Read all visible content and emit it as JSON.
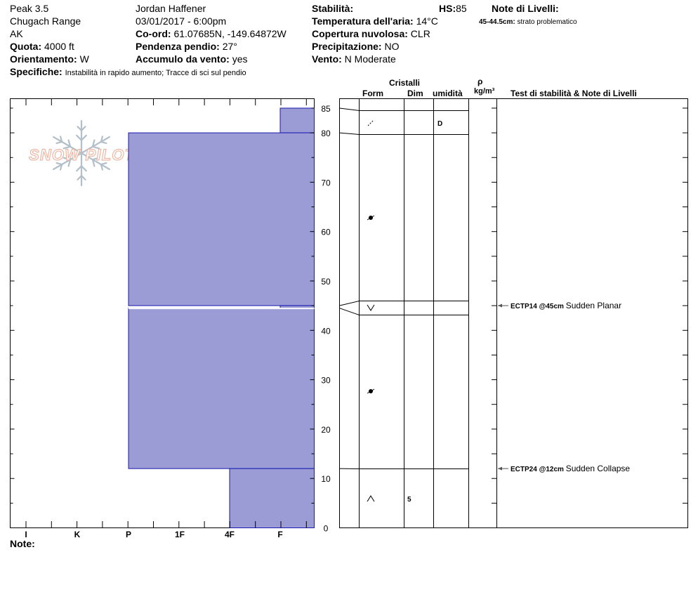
{
  "header": {
    "location": "Peak 3.5",
    "range": "Chugach Range",
    "state": "AK",
    "elevation_label": "Quota:",
    "elevation_value": "4000 ft",
    "aspect_label": "Orientamento:",
    "aspect_value": "W",
    "observer": "Jordan Haffener",
    "datetime": "03/01/2017 - 6:00pm",
    "coord_label": "Co-ord:",
    "coord_value": "61.07685N, -149.64872W",
    "slope_label": "Pendenza pendio:",
    "slope_value": "27°",
    "wind_loading_label": "Accumulo da vento:",
    "wind_loading_value": "yes",
    "specifics_label": "Specifiche:",
    "specifics_value": "Instabilità in rapido aumento; Tracce di sci sul pendio",
    "stability_label": "Stabilità:",
    "hs_label": "HS:",
    "hs_value": "85",
    "air_temp_label": "Temperatura dell'aria:",
    "air_temp_value": "14°C",
    "cloud_label": "Copertura nuvolosa:",
    "cloud_value": "CLR",
    "precip_label": "Precipitazione:",
    "precip_value": "NO",
    "wind_label": "Vento:",
    "wind_value": "N Moderate",
    "layer_notes_label": "Note di Livelli:",
    "layer_note_depth": "45-44.5cm:",
    "layer_note_text": "strato problematico",
    "notes_label": "Note:"
  },
  "logo": {
    "text": "SNOW PILOT"
  },
  "columns": {
    "crystals": "Cristalli",
    "form": "Form",
    "dim": "Dim",
    "moisture": "umidità",
    "rho": "ρ",
    "density_unit": "kg/m³",
    "tests": "Test di stabilità & Note di Livelli"
  },
  "chart_data": {
    "type": "snow-profile",
    "hardness_ticks": [
      "I",
      "K",
      "P",
      "1F",
      "4F",
      "F"
    ],
    "y_ticks": [
      0,
      10,
      20,
      30,
      40,
      50,
      60,
      70,
      80,
      85
    ],
    "ylim": [
      0,
      85
    ],
    "layers": [
      {
        "top": 85,
        "bottom": 80,
        "hardness": "F",
        "form": "precip-particles",
        "dim": "",
        "moisture": "D"
      },
      {
        "top": 80,
        "bottom": 45,
        "hardness": "P",
        "form": "melt-forms",
        "dim": "",
        "moisture": ""
      },
      {
        "top": 45,
        "bottom": 44.5,
        "hardness": "F",
        "form": "surface-hoar",
        "dim": "",
        "moisture": ""
      },
      {
        "top": 44.5,
        "bottom": 12,
        "hardness": "P",
        "form": "melt-forms",
        "dim": "",
        "moisture": ""
      },
      {
        "top": 12,
        "bottom": 0,
        "hardness": "4F",
        "form": "depth-hoar",
        "dim": "5",
        "moisture": ""
      }
    ],
    "tests": [
      {
        "depth": 45,
        "code": "ECTP14 @45cm",
        "text": "Sudden Planar"
      },
      {
        "depth": 12,
        "code": "ECTP24 @12cm",
        "text": "Sudden Collapse"
      }
    ],
    "colors": {
      "fill": "#9b9bd6",
      "edge": "#1a1ab0"
    }
  }
}
